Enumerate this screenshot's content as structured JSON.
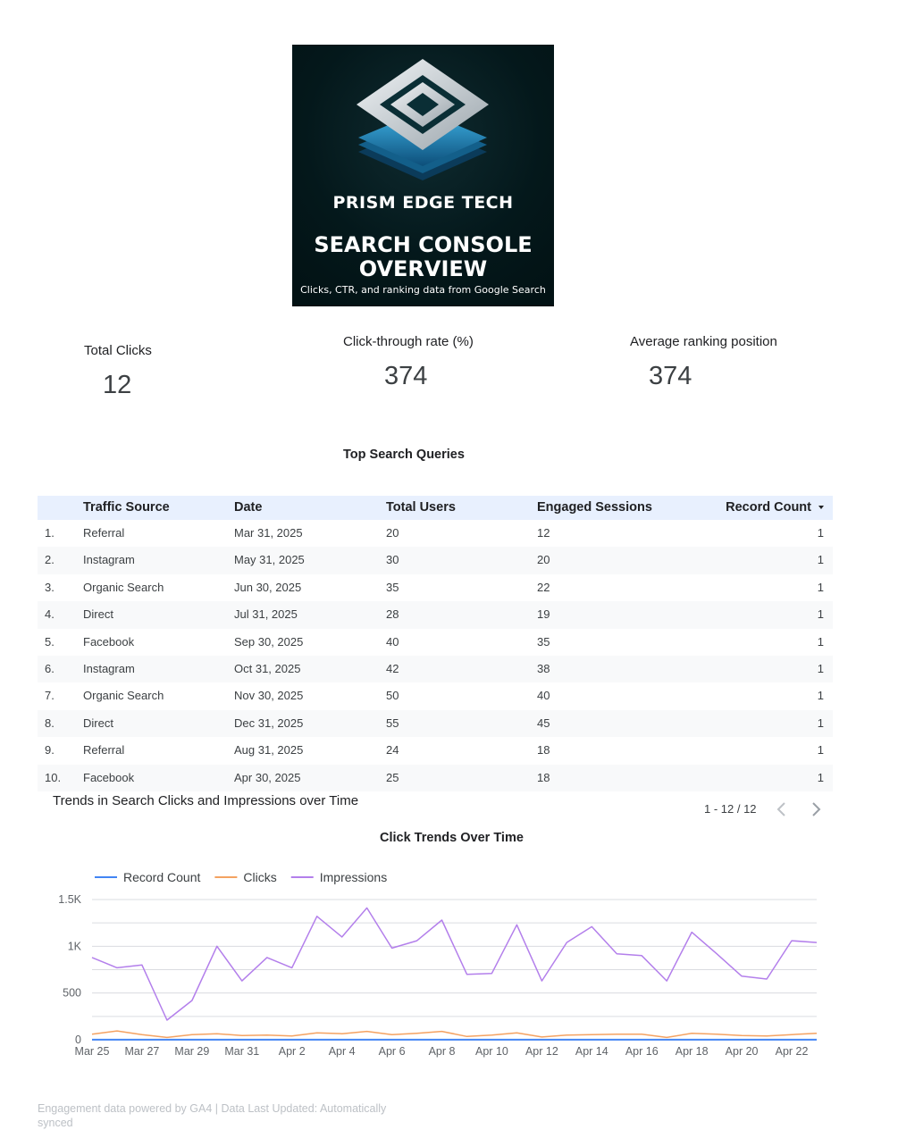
{
  "hero": {
    "brand": "PRISM EDGE TECH",
    "title_line1": "SEARCH CONSOLE",
    "title_line2": "OVERVIEW",
    "subtitle": "Clicks, CTR, and ranking data from Google Search"
  },
  "kpis": [
    {
      "label": "Total Clicks",
      "value": "12"
    },
    {
      "label": "Click-through rate (%)",
      "value": "374"
    },
    {
      "label": "Average ranking position",
      "value": "374"
    }
  ],
  "table": {
    "title": "Top Search Queries",
    "columns": [
      "Traffic Source",
      "Date",
      "Total Users",
      "Engaged Sessions",
      "Record Count"
    ],
    "rows": [
      {
        "n": "1.",
        "source": "Referral",
        "date": "Mar 31, 2025",
        "users": "20",
        "sessions": "12",
        "count": "1"
      },
      {
        "n": "2.",
        "source": "Instagram",
        "date": "May 31, 2025",
        "users": "30",
        "sessions": "20",
        "count": "1"
      },
      {
        "n": "3.",
        "source": "Organic Search",
        "date": "Jun 30, 2025",
        "users": "35",
        "sessions": "22",
        "count": "1"
      },
      {
        "n": "4.",
        "source": "Direct",
        "date": "Jul 31, 2025",
        "users": "28",
        "sessions": "19",
        "count": "1"
      },
      {
        "n": "5.",
        "source": "Facebook",
        "date": "Sep 30, 2025",
        "users": "40",
        "sessions": "35",
        "count": "1"
      },
      {
        "n": "6.",
        "source": "Instagram",
        "date": "Oct 31, 2025",
        "users": "42",
        "sessions": "38",
        "count": "1"
      },
      {
        "n": "7.",
        "source": "Organic Search",
        "date": "Nov 30, 2025",
        "users": "50",
        "sessions": "40",
        "count": "1"
      },
      {
        "n": "8.",
        "source": "Direct",
        "date": "Dec 31, 2025",
        "users": "55",
        "sessions": "45",
        "count": "1"
      },
      {
        "n": "9.",
        "source": "Referral",
        "date": "Aug 31, 2025",
        "users": "24",
        "sessions": "18",
        "count": "1"
      },
      {
        "n": "10.",
        "source": "Facebook",
        "date": "Apr 30, 2025",
        "users": "25",
        "sessions": "18",
        "count": "1"
      }
    ],
    "pagination": "1 - 12 / 12"
  },
  "section_title": "Trends in Search Clicks and Impressions over Time",
  "footer": "Engagement data powered by GA4 | Data Last Updated: Automatically synced",
  "colors": {
    "record_count": "#4285f4",
    "clicks": "#f4a261",
    "impressions": "#b37feb",
    "header_bg": "#e8f0fe"
  },
  "chart_data": {
    "type": "line",
    "title": "Click Trends Over Time",
    "xlabel": "",
    "ylabel": "",
    "ylim": [
      0,
      1500
    ],
    "yticks": [
      0,
      500,
      1000,
      1500
    ],
    "ytick_labels": [
      "0",
      "500",
      "1K",
      "1.5K"
    ],
    "grid": true,
    "legend_position": "top-left",
    "x": [
      "Mar 25",
      "Mar 26",
      "Mar 27",
      "Mar 28",
      "Mar 29",
      "Mar 30",
      "Mar 31",
      "Apr 1",
      "Apr 2",
      "Apr 3",
      "Apr 4",
      "Apr 5",
      "Apr 6",
      "Apr 7",
      "Apr 8",
      "Apr 9",
      "Apr 10",
      "Apr 11",
      "Apr 12",
      "Apr 13",
      "Apr 14",
      "Apr 15",
      "Apr 16",
      "Apr 17",
      "Apr 18",
      "Apr 19",
      "Apr 20",
      "Apr 21",
      "Apr 22",
      "Apr 23"
    ],
    "xtick_labels": [
      "Mar 25",
      "Mar 27",
      "Mar 29",
      "Mar 31",
      "Apr 2",
      "Apr 4",
      "Apr 6",
      "Apr 8",
      "Apr 10",
      "Apr 12",
      "Apr 14",
      "Apr 16",
      "Apr 18",
      "Apr 20",
      "Apr 22"
    ],
    "series": [
      {
        "name": "Record Count",
        "color": "#4285f4",
        "values": [
          1,
          1,
          1,
          1,
          1,
          1,
          1,
          1,
          1,
          1,
          1,
          1,
          1,
          1,
          1,
          1,
          1,
          1,
          1,
          1,
          1,
          1,
          1,
          1,
          1,
          1,
          1,
          1,
          1,
          1
        ]
      },
      {
        "name": "Clicks",
        "color": "#f4a261",
        "values": [
          60,
          95,
          55,
          25,
          55,
          65,
          45,
          50,
          40,
          75,
          65,
          90,
          55,
          70,
          90,
          35,
          50,
          75,
          30,
          50,
          55,
          60,
          60,
          25,
          70,
          60,
          45,
          40,
          55,
          70
        ]
      },
      {
        "name": "Impressions",
        "color": "#b37feb",
        "values": [
          880,
          770,
          800,
          210,
          420,
          1000,
          630,
          880,
          770,
          1320,
          1100,
          1410,
          980,
          1060,
          1280,
          700,
          710,
          1230,
          630,
          1040,
          1210,
          920,
          900,
          630,
          1150,
          920,
          680,
          650,
          1060,
          1040
        ]
      }
    ]
  }
}
